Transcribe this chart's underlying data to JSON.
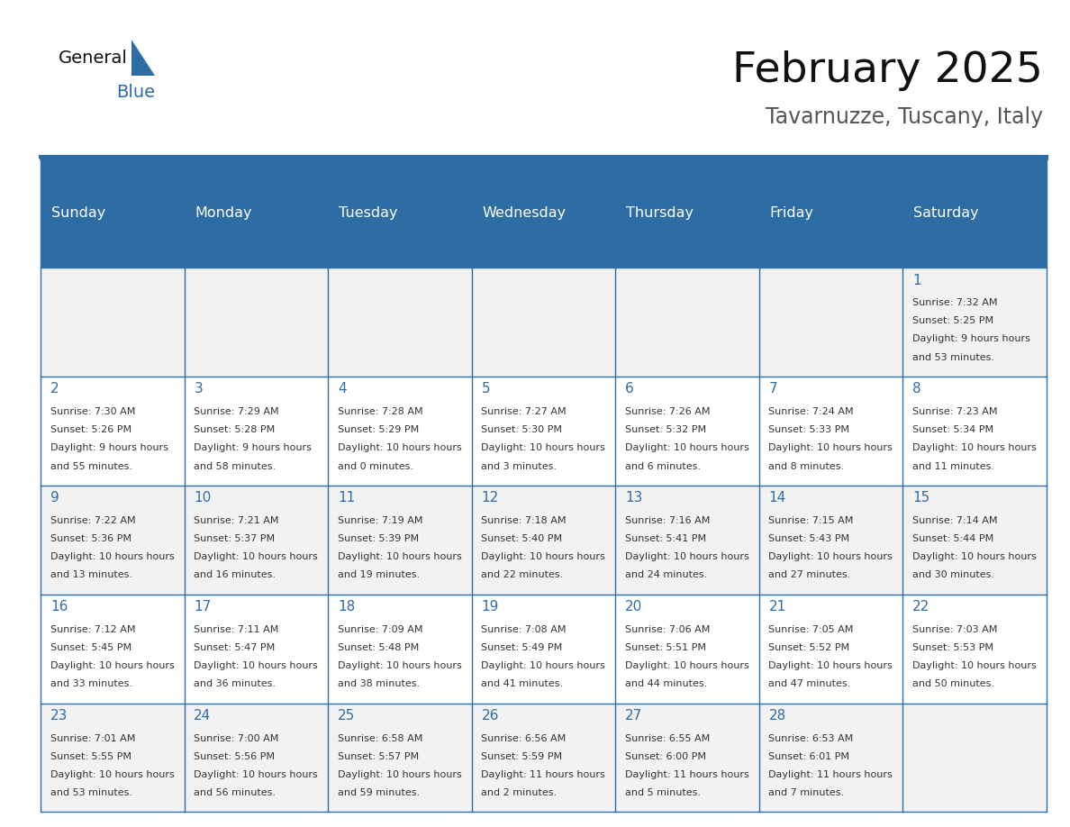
{
  "title": "February 2025",
  "subtitle": "Tavarnuzze, Tuscany, Italy",
  "days_of_week": [
    "Sunday",
    "Monday",
    "Tuesday",
    "Wednesday",
    "Thursday",
    "Friday",
    "Saturday"
  ],
  "header_bg": "#2e6da4",
  "header_text_color": "#ffffff",
  "cell_bg_odd": "#f2f2f2",
  "cell_bg_even": "#ffffff",
  "border_color": "#2e6da4",
  "day_number_color": "#2e6da4",
  "cell_text_color": "#333333",
  "title_color": "#111111",
  "subtitle_color": "#555555",
  "logo_general_color": "#111111",
  "logo_blue_color": "#2e6da4",
  "calendar": [
    [
      null,
      null,
      null,
      null,
      null,
      null,
      {
        "day": 1,
        "sunrise": "7:32 AM",
        "sunset": "5:25 PM",
        "daylight": "9 hours and 53 minutes."
      }
    ],
    [
      {
        "day": 2,
        "sunrise": "7:30 AM",
        "sunset": "5:26 PM",
        "daylight": "9 hours and 55 minutes."
      },
      {
        "day": 3,
        "sunrise": "7:29 AM",
        "sunset": "5:28 PM",
        "daylight": "9 hours and 58 minutes."
      },
      {
        "day": 4,
        "sunrise": "7:28 AM",
        "sunset": "5:29 PM",
        "daylight": "10 hours and 0 minutes."
      },
      {
        "day": 5,
        "sunrise": "7:27 AM",
        "sunset": "5:30 PM",
        "daylight": "10 hours and 3 minutes."
      },
      {
        "day": 6,
        "sunrise": "7:26 AM",
        "sunset": "5:32 PM",
        "daylight": "10 hours and 6 minutes."
      },
      {
        "day": 7,
        "sunrise": "7:24 AM",
        "sunset": "5:33 PM",
        "daylight": "10 hours and 8 minutes."
      },
      {
        "day": 8,
        "sunrise": "7:23 AM",
        "sunset": "5:34 PM",
        "daylight": "10 hours and 11 minutes."
      }
    ],
    [
      {
        "day": 9,
        "sunrise": "7:22 AM",
        "sunset": "5:36 PM",
        "daylight": "10 hours and 13 minutes."
      },
      {
        "day": 10,
        "sunrise": "7:21 AM",
        "sunset": "5:37 PM",
        "daylight": "10 hours and 16 minutes."
      },
      {
        "day": 11,
        "sunrise": "7:19 AM",
        "sunset": "5:39 PM",
        "daylight": "10 hours and 19 minutes."
      },
      {
        "day": 12,
        "sunrise": "7:18 AM",
        "sunset": "5:40 PM",
        "daylight": "10 hours and 22 minutes."
      },
      {
        "day": 13,
        "sunrise": "7:16 AM",
        "sunset": "5:41 PM",
        "daylight": "10 hours and 24 minutes."
      },
      {
        "day": 14,
        "sunrise": "7:15 AM",
        "sunset": "5:43 PM",
        "daylight": "10 hours and 27 minutes."
      },
      {
        "day": 15,
        "sunrise": "7:14 AM",
        "sunset": "5:44 PM",
        "daylight": "10 hours and 30 minutes."
      }
    ],
    [
      {
        "day": 16,
        "sunrise": "7:12 AM",
        "sunset": "5:45 PM",
        "daylight": "10 hours and 33 minutes."
      },
      {
        "day": 17,
        "sunrise": "7:11 AM",
        "sunset": "5:47 PM",
        "daylight": "10 hours and 36 minutes."
      },
      {
        "day": 18,
        "sunrise": "7:09 AM",
        "sunset": "5:48 PM",
        "daylight": "10 hours and 38 minutes."
      },
      {
        "day": 19,
        "sunrise": "7:08 AM",
        "sunset": "5:49 PM",
        "daylight": "10 hours and 41 minutes."
      },
      {
        "day": 20,
        "sunrise": "7:06 AM",
        "sunset": "5:51 PM",
        "daylight": "10 hours and 44 minutes."
      },
      {
        "day": 21,
        "sunrise": "7:05 AM",
        "sunset": "5:52 PM",
        "daylight": "10 hours and 47 minutes."
      },
      {
        "day": 22,
        "sunrise": "7:03 AM",
        "sunset": "5:53 PM",
        "daylight": "10 hours and 50 minutes."
      }
    ],
    [
      {
        "day": 23,
        "sunrise": "7:01 AM",
        "sunset": "5:55 PM",
        "daylight": "10 hours and 53 minutes."
      },
      {
        "day": 24,
        "sunrise": "7:00 AM",
        "sunset": "5:56 PM",
        "daylight": "10 hours and 56 minutes."
      },
      {
        "day": 25,
        "sunrise": "6:58 AM",
        "sunset": "5:57 PM",
        "daylight": "10 hours and 59 minutes."
      },
      {
        "day": 26,
        "sunrise": "6:56 AM",
        "sunset": "5:59 PM",
        "daylight": "11 hours and 2 minutes."
      },
      {
        "day": 27,
        "sunrise": "6:55 AM",
        "sunset": "6:00 PM",
        "daylight": "11 hours and 5 minutes."
      },
      {
        "day": 28,
        "sunrise": "6:53 AM",
        "sunset": "6:01 PM",
        "daylight": "11 hours and 7 minutes."
      },
      null
    ]
  ]
}
